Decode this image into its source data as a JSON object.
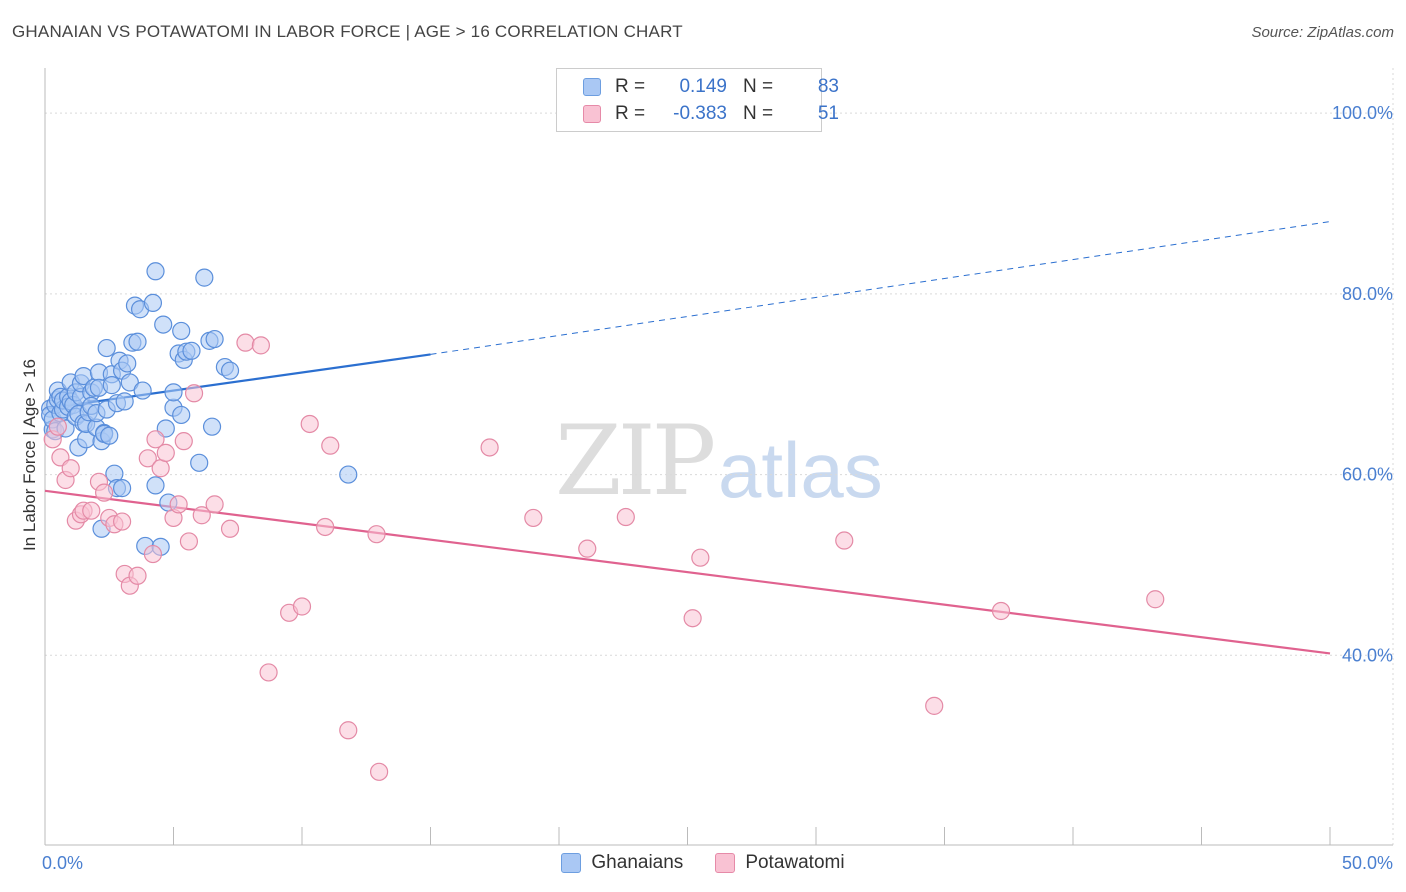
{
  "title": "GHANAIAN VS POTAWATOMI IN LABOR FORCE | AGE > 16 CORRELATION CHART",
  "source": "Source: ZipAtlas.com",
  "watermark": {
    "zip": "ZIP",
    "atlas": "atlas"
  },
  "legend": {
    "rows": [
      {
        "r_label": "R =",
        "r_value": "0.149",
        "n_label": "N =",
        "n_value": "83",
        "color": "#aac8f4",
        "border": "#6d9ee0"
      },
      {
        "r_label": "R =",
        "r_value": "-0.383",
        "n_label": "N =",
        "n_value": "51",
        "color": "#f9c2d3",
        "border": "#e68aa8"
      }
    ]
  },
  "colors": {
    "ghanaian_fill": "#aac8f4",
    "ghanaian_stroke": "#5b8fdb",
    "ghanaian_line": "#2b6fd0",
    "potawatomi_fill": "#f9c2d3",
    "potawatomi_stroke": "#e48aa6",
    "potawatomi_line": "#e0628f",
    "axis_text": "#4a7fd0"
  },
  "chart_data": {
    "type": "scatter",
    "title": "GHANAIAN VS POTAWATOMI IN LABOR FORCE | AGE > 16 CORRELATION CHART",
    "xlabel": "",
    "ylabel": "In Labor Force | Age > 16",
    "xlim": [
      0,
      50
    ],
    "ylim": [
      19,
      105
    ],
    "x_tick_labels": [
      {
        "value": 0,
        "label": "0.0%"
      },
      {
        "value": 50,
        "label": "50.0%"
      }
    ],
    "y_tick_labels": [
      {
        "value": 100,
        "label": "100.0%"
      },
      {
        "value": 80,
        "label": "80.0%"
      },
      {
        "value": 60,
        "label": "60.0%"
      },
      {
        "value": 40,
        "label": "40.0%"
      }
    ],
    "y_gridlines": [
      100,
      80,
      60,
      40
    ],
    "x_minor_ticks": [
      0,
      5,
      10,
      15,
      20,
      25,
      30,
      35,
      40,
      45,
      50
    ],
    "grid": true,
    "series": [
      {
        "name": "Ghanaians",
        "points": [
          [
            0.2,
            67.3
          ],
          [
            0.2,
            66.6
          ],
          [
            0.3,
            65.0
          ],
          [
            0.3,
            66.1
          ],
          [
            0.4,
            64.8
          ],
          [
            0.4,
            67.7
          ],
          [
            0.5,
            68.3
          ],
          [
            0.5,
            69.3
          ],
          [
            0.6,
            68.6
          ],
          [
            0.6,
            66.8
          ],
          [
            0.7,
            67.2
          ],
          [
            0.7,
            68.2
          ],
          [
            0.8,
            65.1
          ],
          [
            0.9,
            68.6
          ],
          [
            0.9,
            67.5
          ],
          [
            1.0,
            70.2
          ],
          [
            1.0,
            68.1
          ],
          [
            1.1,
            67.7
          ],
          [
            1.2,
            66.4
          ],
          [
            1.2,
            69.1
          ],
          [
            1.3,
            63.0
          ],
          [
            1.3,
            66.7
          ],
          [
            1.4,
            68.6
          ],
          [
            1.4,
            70.1
          ],
          [
            1.5,
            70.9
          ],
          [
            1.5,
            65.7
          ],
          [
            1.6,
            63.9
          ],
          [
            1.6,
            65.6
          ],
          [
            1.7,
            66.9
          ],
          [
            1.8,
            69.1
          ],
          [
            1.8,
            67.6
          ],
          [
            1.9,
            69.6
          ],
          [
            2.0,
            65.2
          ],
          [
            2.0,
            66.8
          ],
          [
            2.1,
            71.3
          ],
          [
            2.1,
            69.6
          ],
          [
            2.2,
            63.7
          ],
          [
            2.3,
            64.6
          ],
          [
            2.3,
            64.5
          ],
          [
            2.4,
            67.2
          ],
          [
            2.4,
            74.0
          ],
          [
            2.5,
            64.3
          ],
          [
            2.6,
            71.1
          ],
          [
            2.6,
            69.9
          ],
          [
            2.7,
            60.1
          ],
          [
            2.8,
            58.5
          ],
          [
            2.8,
            67.9
          ],
          [
            2.9,
            72.6
          ],
          [
            3.0,
            71.5
          ],
          [
            3.1,
            68.1
          ],
          [
            3.2,
            72.3
          ],
          [
            3.3,
            70.2
          ],
          [
            3.4,
            74.6
          ],
          [
            3.5,
            78.7
          ],
          [
            3.6,
            74.7
          ],
          [
            3.7,
            78.3
          ],
          [
            3.8,
            69.3
          ],
          [
            3.9,
            52.1
          ],
          [
            4.2,
            79.0
          ],
          [
            4.3,
            58.8
          ],
          [
            4.3,
            82.5
          ],
          [
            4.5,
            52.0
          ],
          [
            4.6,
            76.6
          ],
          [
            4.7,
            65.1
          ],
          [
            4.8,
            56.9
          ],
          [
            5.0,
            67.4
          ],
          [
            5.0,
            69.1
          ],
          [
            5.2,
            73.4
          ],
          [
            5.3,
            66.6
          ],
          [
            5.3,
            75.9
          ],
          [
            5.4,
            72.7
          ],
          [
            5.5,
            73.6
          ],
          [
            5.7,
            73.7
          ],
          [
            6.0,
            61.3
          ],
          [
            6.2,
            81.8
          ],
          [
            6.4,
            74.8
          ],
          [
            6.5,
            65.3
          ],
          [
            6.6,
            75.0
          ],
          [
            7.0,
            71.9
          ],
          [
            7.2,
            71.5
          ],
          [
            11.8,
            60.0
          ],
          [
            3.0,
            58.5
          ],
          [
            2.2,
            54.0
          ]
        ]
      },
      {
        "name": "Potawatomi",
        "points": [
          [
            0.3,
            63.9
          ],
          [
            0.5,
            65.3
          ],
          [
            0.6,
            61.9
          ],
          [
            0.8,
            59.4
          ],
          [
            1.0,
            60.7
          ],
          [
            1.2,
            54.9
          ],
          [
            1.4,
            55.6
          ],
          [
            1.5,
            56.0
          ],
          [
            1.8,
            56.0
          ],
          [
            2.1,
            59.2
          ],
          [
            2.3,
            58.0
          ],
          [
            2.5,
            55.2
          ],
          [
            2.7,
            54.5
          ],
          [
            3.0,
            54.8
          ],
          [
            3.1,
            49.0
          ],
          [
            3.3,
            47.7
          ],
          [
            3.6,
            48.8
          ],
          [
            4.0,
            61.8
          ],
          [
            4.2,
            51.2
          ],
          [
            4.3,
            63.9
          ],
          [
            4.5,
            60.7
          ],
          [
            4.7,
            62.4
          ],
          [
            5.0,
            55.2
          ],
          [
            5.2,
            56.7
          ],
          [
            5.4,
            63.7
          ],
          [
            5.6,
            52.6
          ],
          [
            5.8,
            69.0
          ],
          [
            6.1,
            55.5
          ],
          [
            6.6,
            56.7
          ],
          [
            7.2,
            54.0
          ],
          [
            7.8,
            74.6
          ],
          [
            8.4,
            74.3
          ],
          [
            8.7,
            38.1
          ],
          [
            9.5,
            44.7
          ],
          [
            10.0,
            45.4
          ],
          [
            10.3,
            65.6
          ],
          [
            10.9,
            54.2
          ],
          [
            11.1,
            63.2
          ],
          [
            11.8,
            31.7
          ],
          [
            12.9,
            53.4
          ],
          [
            13.0,
            27.1
          ],
          [
            17.3,
            63.0
          ],
          [
            19.0,
            55.2
          ],
          [
            21.1,
            51.8
          ],
          [
            22.6,
            55.3
          ],
          [
            25.2,
            44.1
          ],
          [
            25.5,
            50.8
          ],
          [
            31.1,
            52.7
          ],
          [
            34.6,
            34.4
          ],
          [
            37.2,
            44.9
          ],
          [
            43.2,
            46.2
          ]
        ]
      }
    ],
    "trend_lines": [
      {
        "series": "Ghanaians",
        "solid": [
          [
            0,
            67.3
          ],
          [
            15,
            73.3
          ]
        ],
        "dashed": [
          [
            15,
            73.3
          ],
          [
            50,
            88.0
          ]
        ]
      },
      {
        "series": "Potawatomi",
        "solid": [
          [
            0,
            58.2
          ],
          [
            50,
            40.2
          ]
        ]
      }
    ],
    "legend_placement": "top-center",
    "bottom_legend": [
      "Ghanaians",
      "Potawatomi"
    ]
  }
}
